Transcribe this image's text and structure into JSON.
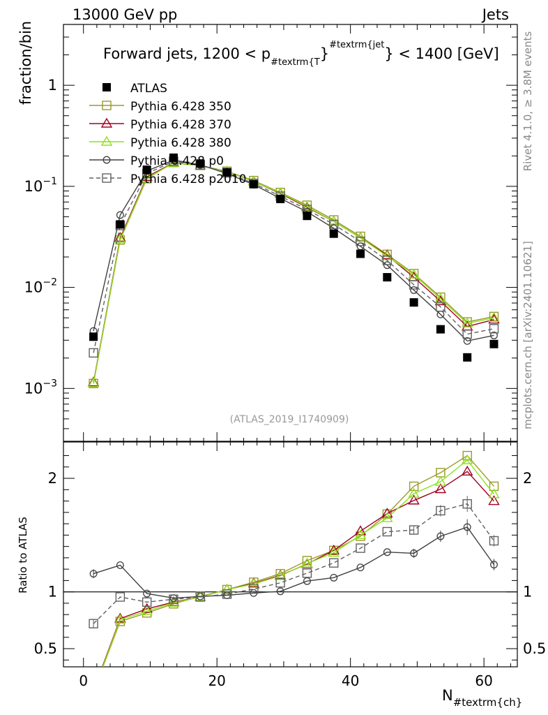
{
  "header": {
    "left": "13000 GeV pp",
    "right": "Jets"
  },
  "side_labels": {
    "rivet": "Rivet 4.1.0, ≥ 3.8M events",
    "mcplots": "mcplots.cern.ch [arXiv:2401.10621]"
  },
  "chart_data": {
    "type": "scatter",
    "title": "Forward jets, 1200 < p_{#textrm{T}}^{#textrm{jet}} < 1400 [GeV]",
    "title_parts": {
      "prefix": "Forward jets, 1200 < p",
      "sub": "#textrm{T",
      "close1": "}",
      "sup": "#textrm{jet",
      "suffix": "} < 1400 [GeV]"
    },
    "analysis": "(ATLAS_2019_I1740909)",
    "xlabel": "N",
    "xlabel_sub": "#textrm{ch}",
    "ylabel_top": "fraction/bin",
    "ylabel_bottom": "Ratio to ATLAS",
    "xlim": [
      -3,
      65
    ],
    "ylim_top": [
      0.0003,
      4
    ],
    "ylim_bottom": [
      0.34,
      2.32
    ],
    "x_ticks": [
      "0",
      "20",
      "40",
      "60"
    ],
    "y_ticks_top": [
      {
        "value": 1,
        "mant": "1",
        "exp": ""
      },
      {
        "value": 0.1,
        "mant": "10",
        "exp": "−1"
      },
      {
        "value": 0.01,
        "mant": "10",
        "exp": "−2"
      },
      {
        "value": 0.001,
        "mant": "10",
        "exp": "−3"
      }
    ],
    "y_ticks_bottom": [
      {
        "value": 0.5,
        "label": "0.5"
      },
      {
        "value": 1,
        "label": "1"
      },
      {
        "value": 2,
        "label": "2"
      }
    ],
    "x": [
      1.5,
      5.5,
      9.5,
      13.5,
      17.5,
      21.5,
      25.5,
      29.5,
      33.5,
      37.5,
      41.5,
      45.5,
      49.5,
      53.5,
      57.5,
      61.5
    ],
    "series": [
      {
        "name": "ATLAS",
        "style": "data",
        "color": "#000000",
        "marker": "square-filled",
        "dash": "",
        "values": [
          0.00325,
          0.042,
          0.146,
          0.192,
          0.168,
          0.138,
          0.105,
          0.075,
          0.051,
          0.034,
          0.0215,
          0.0126,
          0.0071,
          0.00385,
          0.00203,
          0.00275
        ],
        "ratio": [
          1,
          1,
          1,
          1,
          1,
          1,
          1,
          1,
          1,
          1,
          1,
          1,
          1,
          1,
          1,
          1
        ]
      },
      {
        "name": "Pythia 6.428 350",
        "style": "mc",
        "color": "#9a9a28",
        "marker": "square-open",
        "dash": "",
        "values": [
          0.00112,
          0.0295,
          0.119,
          0.172,
          0.161,
          0.141,
          0.114,
          0.087,
          0.065,
          0.0465,
          0.032,
          0.0212,
          0.0137,
          0.008,
          0.00455,
          0.00515
        ],
        "ratio": [
          0.12,
          0.74,
          0.815,
          0.895,
          0.96,
          1.02,
          1.085,
          1.16,
          1.275,
          1.365,
          1.49,
          1.685,
          1.93,
          2.05,
          2.2,
          1.93
        ]
      },
      {
        "name": "Pythia 6.428 370",
        "style": "mc",
        "color": "#a00020",
        "marker": "triangle-open",
        "dash": "",
        "values": [
          0.00115,
          0.031,
          0.124,
          0.171,
          0.16,
          0.14,
          0.112,
          0.085,
          0.062,
          0.045,
          0.031,
          0.0208,
          0.0126,
          0.0073,
          0.0041,
          0.0048
        ],
        "ratio": [
          0.13,
          0.765,
          0.85,
          0.91,
          0.955,
          1.02,
          1.075,
          1.145,
          1.245,
          1.365,
          1.535,
          1.69,
          1.805,
          1.905,
          2.06,
          1.8
        ]
      },
      {
        "name": "Pythia 6.428 380",
        "style": "mc",
        "color": "#8ee020",
        "marker": "triangle-open",
        "dash": "",
        "values": [
          0.00113,
          0.03,
          0.121,
          0.17,
          0.16,
          0.14,
          0.112,
          0.086,
          0.063,
          0.045,
          0.031,
          0.0204,
          0.0134,
          0.0077,
          0.0044,
          0.005
        ],
        "ratio": [
          0.12,
          0.755,
          0.83,
          0.905,
          0.955,
          1.02,
          1.07,
          1.14,
          1.25,
          1.345,
          1.5,
          1.65,
          1.865,
          1.97,
          2.16,
          1.86
        ]
      },
      {
        "name": "Pythia 6.428 p0",
        "style": "mc",
        "color": "#404040",
        "marker": "circle-open",
        "dash": "",
        "values": [
          0.0037,
          0.052,
          0.142,
          0.182,
          0.163,
          0.134,
          0.104,
          0.076,
          0.056,
          0.0385,
          0.0255,
          0.0166,
          0.0094,
          0.0054,
          0.00295,
          0.00335
        ],
        "ratio": [
          1.16,
          1.235,
          0.985,
          0.945,
          0.96,
          0.97,
          0.99,
          1.005,
          1.095,
          1.125,
          1.215,
          1.35,
          1.34,
          1.49,
          1.57,
          1.24
        ]
      },
      {
        "name": "Pythia 6.428 p2010",
        "style": "mc",
        "color": "#606060",
        "marker": "square-open",
        "dash": "6,4",
        "values": [
          0.00225,
          0.041,
          0.134,
          0.177,
          0.163,
          0.136,
          0.107,
          0.08,
          0.059,
          0.042,
          0.0285,
          0.0185,
          0.0106,
          0.0064,
          0.00345,
          0.0039
        ],
        "ratio": [
          0.72,
          0.955,
          0.91,
          0.935,
          0.955,
          0.98,
          1.025,
          1.08,
          1.165,
          1.255,
          1.385,
          1.53,
          1.545,
          1.715,
          1.775,
          1.45
        ]
      }
    ],
    "ratio_errors": [
      0.04,
      0,
      0,
      0,
      0,
      0,
      0,
      0,
      0,
      0,
      0,
      0,
      0.04,
      0.05,
      0.07,
      0.05
    ]
  }
}
